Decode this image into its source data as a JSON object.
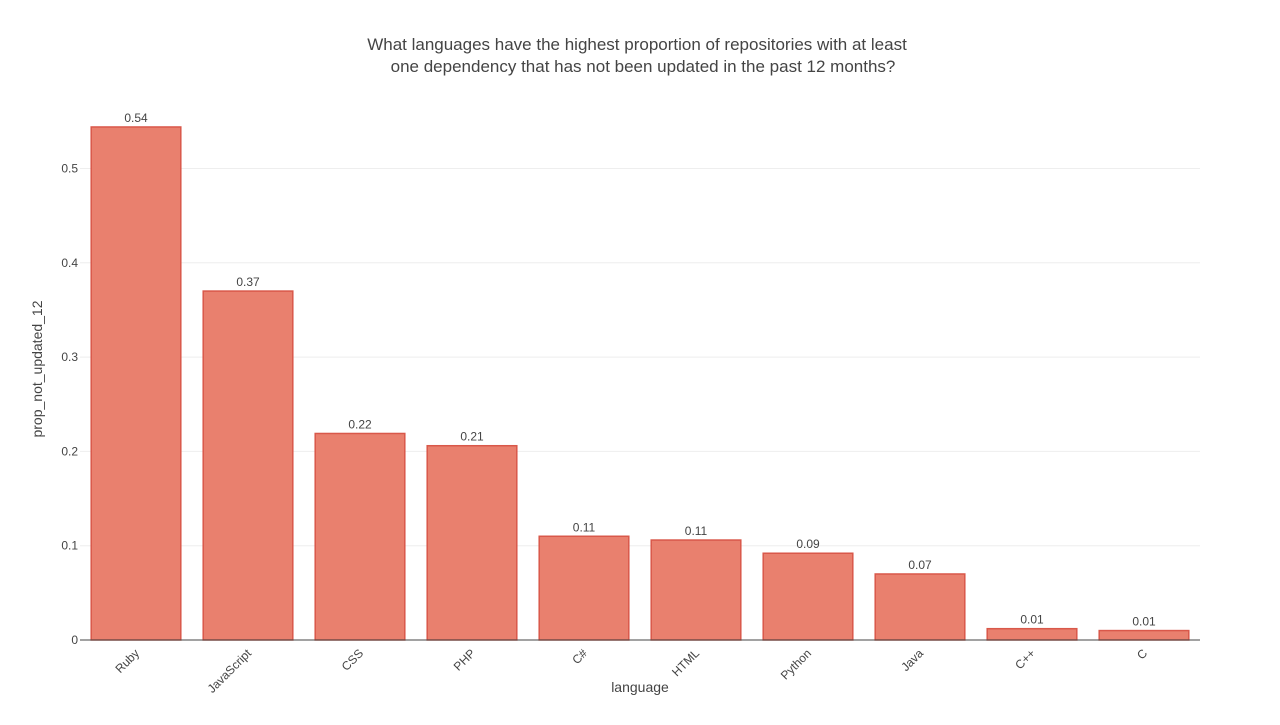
{
  "chart_data": {
    "type": "bar",
    "title_lines": [
      "What languages have the highest proportion of repositories with at least",
      "one dependency that has not been updated in the past 12 months?"
    ],
    "xlabel": "language",
    "ylabel": "prop_not_updated_12",
    "categories": [
      "Ruby",
      "JavaScript",
      "CSS",
      "PHP",
      "C#",
      "HTML",
      "Python",
      "Java",
      "C++",
      "C"
    ],
    "values": [
      0.544,
      0.37,
      0.219,
      0.206,
      0.11,
      0.106,
      0.092,
      0.07,
      0.012,
      0.01
    ],
    "data_labels": [
      "0.54",
      "0.37",
      "0.22",
      "0.21",
      "0.11",
      "0.11",
      "0.09",
      "0.07",
      "0.01",
      "0.01"
    ],
    "yticks": [
      0,
      0.1,
      0.2,
      0.3,
      0.4,
      0.5
    ],
    "ytick_labels": [
      "0",
      "0.1",
      "0.2",
      "0.3",
      "0.4",
      "0.5"
    ],
    "ylim": [
      0,
      0.5726
    ],
    "grid": true,
    "legend": false,
    "colors": {
      "bar_fill": "#e9806e",
      "bar_stroke": "#d9584a",
      "text": "#444444",
      "grid": "#eeeeee",
      "axis": "#444444"
    }
  }
}
